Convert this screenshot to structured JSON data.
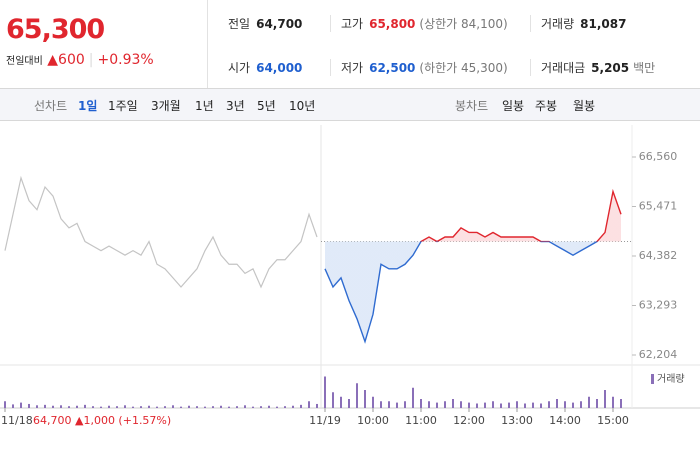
{
  "quote": {
    "price": "65,300",
    "change_label": "전일대비",
    "change": "▲600",
    "change_pct": "+0.93%"
  },
  "summary": [
    [
      {
        "label": "전일",
        "value": "64,700"
      },
      {
        "label": "고가",
        "value": "65,800",
        "note": "(상한가 84,100)"
      },
      {
        "label": "거래량",
        "value": "81,087"
      }
    ],
    [
      {
        "label": "시가",
        "value": "64,000"
      },
      {
        "label": "저가",
        "value": "62,500",
        "note": "(하한가 45,300)"
      },
      {
        "label": "거래대금",
        "value": "5,205",
        "note": "백만"
      }
    ]
  ],
  "tabs": {
    "line_label": "선차트",
    "line_periods": [
      "1일",
      "1주일",
      "3개월",
      "1년",
      "3년",
      "5년",
      "10년"
    ],
    "active": 0,
    "candle_label": "봉차트",
    "candle_periods": [
      "일봉",
      "주봉",
      "월봉"
    ]
  },
  "chart_data": {
    "type": "line",
    "categories": [
      "11/18",
      null,
      null,
      null,
      null,
      null,
      null,
      null,
      null,
      null,
      null,
      null,
      null,
      null,
      null,
      null,
      null,
      null,
      null,
      null,
      null,
      null,
      null,
      null,
      null,
      null,
      null,
      null,
      null,
      null,
      null,
      null,
      null,
      null,
      null,
      null,
      null,
      null,
      null,
      null,
      "11/19",
      null,
      null,
      null,
      null,
      null,
      "10:00",
      null,
      null,
      null,
      null,
      null,
      "11:00",
      null,
      null,
      null,
      null,
      null,
      "12:00",
      null,
      null,
      null,
      null,
      null,
      "13:00",
      null,
      null,
      null,
      null,
      null,
      "14:00",
      null,
      null,
      null,
      null,
      null,
      "15:00",
      null
    ],
    "annotation": "64,700 ▲1,000 (+1.57%)",
    "ylim": [
      61984,
      67264
    ],
    "yticks": [
      {
        "value": 62204,
        "label": "62,204"
      },
      {
        "value": 63293,
        "label": "63,293"
      },
      {
        "value": 64382,
        "label": "64,382"
      },
      {
        "value": 65471,
        "label": "65,471"
      },
      {
        "value": 66560,
        "label": "66,560"
      }
    ],
    "grid": false,
    "baseline": 64700,
    "y2lim": [
      0,
      8000
    ],
    "series": [
      {
        "type": "line",
        "color": "#c4c4c4",
        "values": [
          64500,
          65300,
          66100,
          65600,
          65400,
          65900,
          65700,
          65200,
          65000,
          65100,
          64700,
          64600,
          64500,
          64600,
          64500,
          64400,
          64500,
          64400,
          64700,
          64200,
          64100,
          63900,
          63700,
          63900,
          64100,
          64500,
          64800,
          64400,
          64200,
          64200,
          64000,
          64100,
          63700,
          64100,
          64300,
          64300,
          64500,
          64700,
          65300,
          64800,
          null,
          null,
          null,
          null,
          null,
          null,
          null,
          null,
          null,
          null,
          null,
          null,
          null,
          null,
          null,
          null,
          null,
          null,
          null,
          null,
          null,
          null,
          null,
          null,
          null,
          null,
          null,
          null,
          null,
          null,
          null,
          null,
          null,
          null,
          null,
          null,
          null,
          null
        ]
      },
      {
        "type": "area",
        "color_up": "#e0262e",
        "color_down": "#2f6bd0",
        "fill_up": "#fbd9db",
        "fill_down": "#d9e5f7",
        "values": [
          null,
          null,
          null,
          null,
          null,
          null,
          null,
          null,
          null,
          null,
          null,
          null,
          null,
          null,
          null,
          null,
          null,
          null,
          null,
          null,
          null,
          null,
          null,
          null,
          null,
          null,
          null,
          null,
          null,
          null,
          null,
          null,
          null,
          null,
          null,
          null,
          null,
          null,
          null,
          null,
          64100,
          63700,
          63900,
          63400,
          63000,
          62500,
          63100,
          64200,
          64100,
          64100,
          64200,
          64400,
          64700,
          64800,
          64700,
          64800,
          64800,
          65000,
          64900,
          64900,
          64800,
          64900,
          64800,
          64800,
          64800,
          64800,
          64800,
          64700,
          64700,
          64600,
          64500,
          64400,
          64500,
          64600,
          64700,
          64900,
          65800,
          65300
        ]
      },
      {
        "type": "bar",
        "name": "거래량",
        "axis": "y2",
        "color": "#8a6fb8",
        "values": [
          1500,
          800,
          1200,
          900,
          600,
          700,
          500,
          600,
          400,
          500,
          700,
          400,
          300,
          500,
          400,
          600,
          300,
          400,
          500,
          300,
          400,
          600,
          300,
          500,
          400,
          300,
          400,
          500,
          300,
          400,
          600,
          300,
          400,
          500,
          300,
          400,
          500,
          700,
          1500,
          900,
          7000,
          3500,
          2500,
          2000,
          5500,
          4000,
          2500,
          1500,
          1500,
          1200,
          1500,
          4500,
          2000,
          1500,
          1200,
          1500,
          2000,
          1500,
          1200,
          1000,
          1200,
          1500,
          1000,
          1200,
          1500,
          1000,
          1200,
          1000,
          1500,
          2000,
          1500,
          1200,
          1500,
          2500,
          2000,
          4000,
          2500,
          2000
        ]
      }
    ]
  }
}
